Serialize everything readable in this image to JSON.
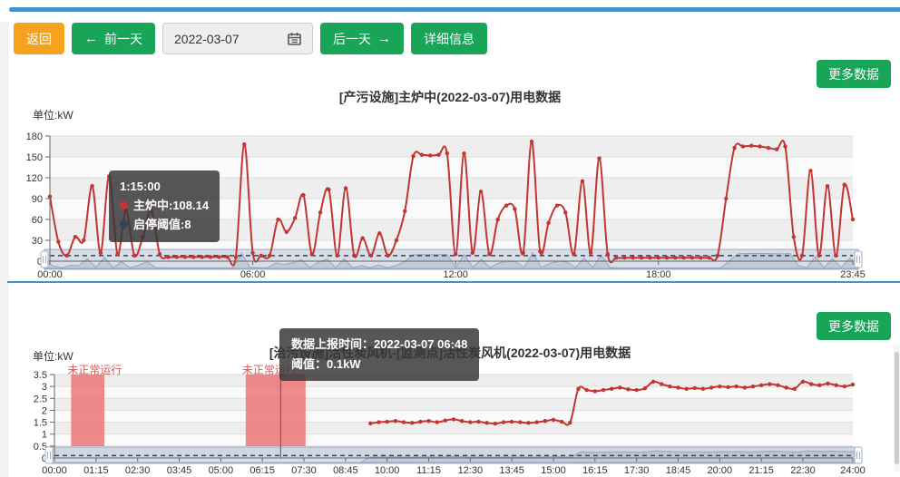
{
  "page": {
    "more_data_label": "更多数据",
    "accent_green": "#18a558",
    "accent_orange": "#f5a31f",
    "accent_blue": "#4493c5"
  },
  "toolbar": {
    "back_label": "返回",
    "prev_label": "前一天",
    "prev_icon": "←",
    "date_value": "2022-03-07",
    "calendar_icon_name": "calendar-icon",
    "next_label": "后一天",
    "next_icon": "→",
    "detail_label": "详细信息"
  },
  "chart_data": [
    {
      "type": "line",
      "title": "[产污设施]主炉中(2022-03-07)用电数据",
      "unit_label": "单位:kW",
      "ylim": [
        0,
        180
      ],
      "y_ticks": [
        0,
        30,
        60,
        90,
        120,
        150,
        180
      ],
      "x_step_minutes": 15,
      "x_ticks": [
        {
          "hour": 0,
          "label": "00:00"
        },
        {
          "hour": 6,
          "label": "06:00"
        },
        {
          "hour": 12,
          "label": "12:00"
        },
        {
          "hour": 18,
          "label": "18:00"
        },
        {
          "hour": 23.75,
          "label": "23:45"
        }
      ],
      "series": [
        {
          "name": "主炉中",
          "color": "#c23531",
          "values": [
            93,
            28,
            8,
            35,
            30,
            108.14,
            12,
            122,
            10,
            73,
            8,
            35,
            73,
            10,
            6,
            6,
            6,
            6,
            6,
            6,
            6,
            6,
            6,
            168,
            12,
            8,
            8,
            60,
            42,
            62,
            95,
            10,
            70,
            103,
            8,
            105,
            8,
            33,
            8,
            40,
            8,
            30,
            72,
            151,
            153,
            152,
            153,
            155,
            10,
            155,
            12,
            100,
            10,
            60,
            80,
            75,
            12,
            172,
            14,
            55,
            80,
            70,
            10,
            115,
            12,
            148,
            10,
            5,
            5,
            5,
            5,
            5,
            5,
            5,
            5,
            5,
            5,
            5,
            5,
            8,
            90,
            163,
            165,
            166,
            165,
            163,
            161,
            165,
            35,
            8,
            130,
            8,
            108,
            8,
            110,
            60
          ]
        },
        {
          "name": "启停阈值",
          "color": "#2f4554",
          "type": "threshold",
          "value": 8
        }
      ],
      "tooltip": {
        "time": "1:15:00",
        "rows": [
          {
            "text": "主炉中:108.14",
            "color": "#c23531"
          },
          {
            "text": "启停阈值:8",
            "color": "#2f4554"
          }
        ]
      }
    },
    {
      "type": "line",
      "title": "[治污设施]活性炭风机-[监测点]活性炭风机(2022-03-07)用电数据",
      "unit_label": "单位:kW",
      "ylim": [
        0,
        3.5
      ],
      "y_ticks": [
        0,
        0.5,
        1,
        1.5,
        2,
        2.5,
        3,
        3.5
      ],
      "x_step_minutes": 15,
      "x_ticks": [
        {
          "hour": 0,
          "label": "00:00"
        },
        {
          "hour": 1.25,
          "label": "01:15"
        },
        {
          "hour": 2.5,
          "label": "02:30"
        },
        {
          "hour": 3.75,
          "label": "03:45"
        },
        {
          "hour": 5,
          "label": "05:00"
        },
        {
          "hour": 6.25,
          "label": "06:15"
        },
        {
          "hour": 7.5,
          "label": "07:30"
        },
        {
          "hour": 8.75,
          "label": "08:45"
        },
        {
          "hour": 10,
          "label": "10:00"
        },
        {
          "hour": 11.25,
          "label": "11:15"
        },
        {
          "hour": 12.5,
          "label": "12:30"
        },
        {
          "hour": 13.75,
          "label": "13:45"
        },
        {
          "hour": 15,
          "label": "15:00"
        },
        {
          "hour": 16.25,
          "label": "16:15"
        },
        {
          "hour": 17.5,
          "label": "17:30"
        },
        {
          "hour": 18.75,
          "label": "18:45"
        },
        {
          "hour": 20,
          "label": "20:00"
        },
        {
          "hour": 21.25,
          "label": "21:15"
        },
        {
          "hour": 22.5,
          "label": "22:30"
        },
        {
          "hour": 24,
          "label": "24:00"
        }
      ],
      "series": [
        {
          "name": "活性炭风机",
          "color": "#c23531",
          "values": [
            null,
            null,
            null,
            null,
            null,
            null,
            null,
            null,
            null,
            null,
            null,
            null,
            null,
            null,
            null,
            null,
            null,
            null,
            null,
            null,
            null,
            null,
            null,
            null,
            null,
            null,
            null,
            null,
            null,
            null,
            null,
            null,
            null,
            null,
            null,
            null,
            null,
            null,
            1.45,
            1.5,
            1.52,
            1.55,
            1.5,
            1.47,
            1.52,
            1.55,
            1.5,
            1.57,
            1.62,
            1.55,
            1.5,
            1.52,
            1.47,
            1.44,
            1.5,
            1.52,
            1.5,
            1.47,
            1.5,
            1.55,
            1.6,
            1.52,
            1.48,
            2.9,
            2.85,
            2.8,
            2.85,
            2.9,
            2.95,
            2.88,
            2.85,
            2.92,
            3.2,
            3.1,
            3.0,
            2.95,
            2.9,
            2.93,
            2.9,
            2.95,
            3.0,
            2.97,
            3.0,
            2.95,
            3.0,
            3.05,
            3.1,
            3.05,
            2.95,
            2.9,
            3.2,
            3.1,
            3.05,
            3.12,
            3.05,
            3.0,
            3.08
          ]
        },
        {
          "name": "阈值",
          "color": "#2f4554",
          "type": "threshold",
          "value": 0.1
        }
      ],
      "abnormal_bands": [
        {
          "from_hour": 0.5,
          "to_hour": 1.5,
          "label": "未正常运行"
        },
        {
          "from_hour": 5.75,
          "to_hour": 7.55,
          "label": "未正常运行"
        }
      ],
      "pointer_hour": 6.8,
      "tooltip_lines": [
        "数据上报时间：2022-03-07 06:48",
        "阈值：0.1kW"
      ]
    }
  ]
}
